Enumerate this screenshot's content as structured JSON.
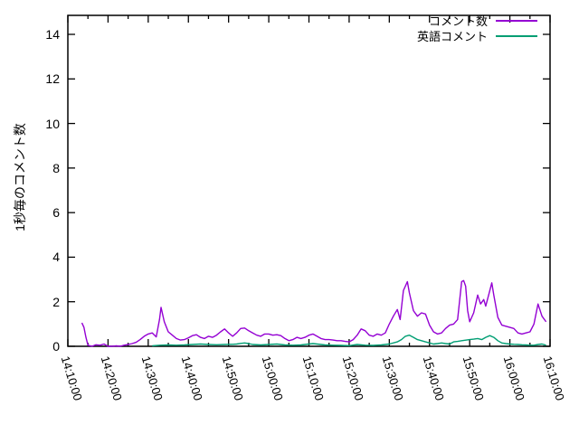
{
  "chart_data": {
    "type": "line",
    "title": "",
    "ylabel": "1秒毎のコメント数",
    "xlabel": "",
    "x_axis": {
      "unit": "time (HH:MM:SS)",
      "tick_labels": [
        "14:10:00",
        "14:20:00",
        "14:30:00",
        "14:40:00",
        "14:50:00",
        "15:00:00",
        "15:10:00",
        "15:20:00",
        "15:30:00",
        "15:40:00",
        "15:50:00",
        "16:00:00",
        "16:10:00"
      ],
      "tick_minutes": [
        0,
        10,
        20,
        30,
        40,
        50,
        60,
        70,
        80,
        90,
        100,
        110,
        120
      ],
      "minor_tick_minutes": [
        5,
        15,
        25,
        35,
        45,
        55,
        65,
        75,
        85,
        95,
        105,
        115
      ],
      "range_minutes": [
        0,
        120
      ]
    },
    "y_axis": {
      "ticks": [
        0,
        2,
        4,
        6,
        8,
        10,
        12,
        14
      ],
      "range": [
        0,
        14.85
      ],
      "grid": false
    },
    "legend_position": "top-right-inside",
    "series": [
      {
        "name": "コメント数",
        "color": "#9400d3",
        "points": [
          [
            3.5,
            1.05
          ],
          [
            4,
            0.85
          ],
          [
            4.5,
            0.4
          ],
          [
            5,
            0.05
          ],
          [
            6,
            0
          ],
          [
            7,
            0.07
          ],
          [
            8,
            0.05
          ],
          [
            9,
            0.1
          ],
          [
            10,
            0
          ],
          [
            11,
            0
          ],
          [
            12,
            0.02
          ],
          [
            13,
            0
          ],
          [
            14,
            0.05
          ],
          [
            15,
            0.08
          ],
          [
            16,
            0.12
          ],
          [
            17,
            0.18
          ],
          [
            18,
            0.3
          ],
          [
            19,
            0.45
          ],
          [
            20,
            0.55
          ],
          [
            21,
            0.6
          ],
          [
            22,
            0.42
          ],
          [
            22.8,
            1.2
          ],
          [
            23.2,
            1.75
          ],
          [
            24,
            1.1
          ],
          [
            25,
            0.65
          ],
          [
            26,
            0.5
          ],
          [
            27,
            0.35
          ],
          [
            28,
            0.28
          ],
          [
            29,
            0.3
          ],
          [
            30,
            0.38
          ],
          [
            31,
            0.48
          ],
          [
            32,
            0.52
          ],
          [
            33,
            0.4
          ],
          [
            34,
            0.35
          ],
          [
            35,
            0.45
          ],
          [
            36,
            0.4
          ],
          [
            37,
            0.5
          ],
          [
            38,
            0.65
          ],
          [
            39,
            0.78
          ],
          [
            40,
            0.6
          ],
          [
            41,
            0.45
          ],
          [
            42,
            0.6
          ],
          [
            43,
            0.8
          ],
          [
            44,
            0.82
          ],
          [
            45,
            0.7
          ],
          [
            46,
            0.6
          ],
          [
            47,
            0.5
          ],
          [
            48,
            0.45
          ],
          [
            49,
            0.55
          ],
          [
            50,
            0.55
          ],
          [
            51,
            0.5
          ],
          [
            52,
            0.52
          ],
          [
            53,
            0.48
          ],
          [
            54,
            0.35
          ],
          [
            55,
            0.25
          ],
          [
            56,
            0.3
          ],
          [
            57,
            0.4
          ],
          [
            58,
            0.35
          ],
          [
            59,
            0.4
          ],
          [
            60,
            0.5
          ],
          [
            61,
            0.55
          ],
          [
            62,
            0.45
          ],
          [
            63,
            0.35
          ],
          [
            64,
            0.3
          ],
          [
            65,
            0.3
          ],
          [
            66,
            0.28
          ],
          [
            67,
            0.25
          ],
          [
            68,
            0.25
          ],
          [
            69,
            0.22
          ],
          [
            70,
            0.2
          ],
          [
            71,
            0.3
          ],
          [
            72,
            0.5
          ],
          [
            73,
            0.78
          ],
          [
            74,
            0.7
          ],
          [
            75,
            0.5
          ],
          [
            76,
            0.45
          ],
          [
            77,
            0.55
          ],
          [
            78,
            0.5
          ],
          [
            79,
            0.6
          ],
          [
            80,
            1.0
          ],
          [
            81,
            1.35
          ],
          [
            82,
            1.65
          ],
          [
            82.7,
            1.2
          ],
          [
            83.5,
            2.5
          ],
          [
            84.5,
            2.9
          ],
          [
            85,
            2.4
          ],
          [
            86,
            1.6
          ],
          [
            87,
            1.35
          ],
          [
            88,
            1.5
          ],
          [
            89,
            1.45
          ],
          [
            90,
            0.95
          ],
          [
            91,
            0.65
          ],
          [
            92,
            0.55
          ],
          [
            93,
            0.6
          ],
          [
            94,
            0.8
          ],
          [
            95,
            0.95
          ],
          [
            96,
            1.0
          ],
          [
            97,
            1.2
          ],
          [
            98,
            2.9
          ],
          [
            98.5,
            2.95
          ],
          [
            99,
            2.7
          ],
          [
            99.5,
            1.6
          ],
          [
            100,
            1.1
          ],
          [
            101,
            1.5
          ],
          [
            102,
            2.3
          ],
          [
            102.7,
            1.9
          ],
          [
            103.5,
            2.1
          ],
          [
            104,
            1.8
          ],
          [
            105,
            2.5
          ],
          [
            105.5,
            2.85
          ],
          [
            106,
            2.3
          ],
          [
            107,
            1.3
          ],
          [
            108,
            0.95
          ],
          [
            109,
            0.9
          ],
          [
            110,
            0.85
          ],
          [
            111,
            0.8
          ],
          [
            112,
            0.6
          ],
          [
            113,
            0.55
          ],
          [
            114,
            0.6
          ],
          [
            115,
            0.65
          ],
          [
            116,
            1.0
          ],
          [
            117,
            1.9
          ],
          [
            118,
            1.35
          ],
          [
            119,
            1.1
          ]
        ]
      },
      {
        "name": "英語コメント",
        "color": "#009e73",
        "points": [
          [
            21,
            0.02
          ],
          [
            23,
            0.05
          ],
          [
            25,
            0.06
          ],
          [
            27,
            0.05
          ],
          [
            29,
            0.06
          ],
          [
            31,
            0.08
          ],
          [
            33,
            0.1
          ],
          [
            35,
            0.08
          ],
          [
            37,
            0.07
          ],
          [
            39,
            0.08
          ],
          [
            41,
            0.09
          ],
          [
            42,
            0.1
          ],
          [
            43,
            0.13
          ],
          [
            44,
            0.15
          ],
          [
            45,
            0.12
          ],
          [
            46,
            0.08
          ],
          [
            48,
            0.06
          ],
          [
            50,
            0.08
          ],
          [
            52,
            0.1
          ],
          [
            54,
            0.06
          ],
          [
            56,
            0.05
          ],
          [
            58,
            0.06
          ],
          [
            60,
            0.1
          ],
          [
            61,
            0.12
          ],
          [
            62,
            0.1
          ],
          [
            64,
            0.06
          ],
          [
            66,
            0.05
          ],
          [
            68,
            0.04
          ],
          [
            70,
            0.03
          ],
          [
            72,
            0.08
          ],
          [
            74,
            0.05
          ],
          [
            76,
            0.04
          ],
          [
            78,
            0.06
          ],
          [
            80,
            0.1
          ],
          [
            82,
            0.2
          ],
          [
            83,
            0.3
          ],
          [
            84,
            0.45
          ],
          [
            85,
            0.5
          ],
          [
            86,
            0.4
          ],
          [
            87,
            0.3
          ],
          [
            88,
            0.25
          ],
          [
            89,
            0.2
          ],
          [
            90,
            0.15
          ],
          [
            91,
            0.1
          ],
          [
            92,
            0.12
          ],
          [
            93,
            0.15
          ],
          [
            94,
            0.12
          ],
          [
            95,
            0.1
          ],
          [
            96,
            0.2
          ],
          [
            97,
            0.22
          ],
          [
            98,
            0.25
          ],
          [
            100,
            0.3
          ],
          [
            101,
            0.32
          ],
          [
            102,
            0.35
          ],
          [
            103,
            0.3
          ],
          [
            104,
            0.4
          ],
          [
            105,
            0.48
          ],
          [
            106,
            0.4
          ],
          [
            107,
            0.25
          ],
          [
            108,
            0.15
          ],
          [
            109,
            0.12
          ],
          [
            110,
            0.1
          ],
          [
            111,
            0.09
          ],
          [
            112,
            0.08
          ],
          [
            113,
            0.07
          ],
          [
            114,
            0.06
          ],
          [
            115,
            0.05
          ],
          [
            116,
            0.05
          ],
          [
            117,
            0.08
          ],
          [
            118,
            0.1
          ],
          [
            119,
            0.05
          ]
        ]
      }
    ],
    "colors": {
      "border": "#000000",
      "background": "#ffffff",
      "series1": "#9400d3",
      "series2": "#009e73"
    }
  }
}
